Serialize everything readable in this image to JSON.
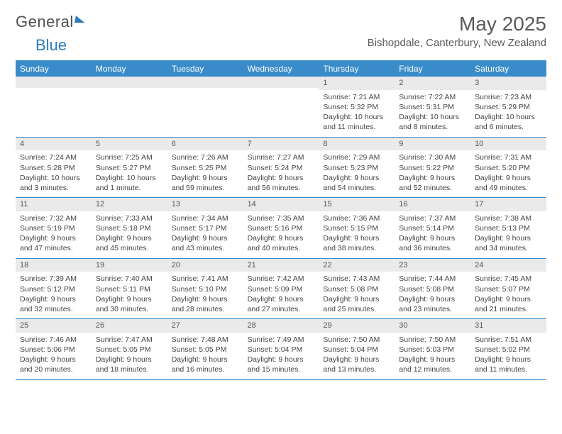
{
  "logo": {
    "part1": "General",
    "part2": "Blue"
  },
  "title": "May 2025",
  "location": "Bishopdale, Canterbury, New Zealand",
  "colors": {
    "header_bg": "#3a8bc9",
    "header_text": "#ffffff",
    "daynum_bg": "#eaeaea",
    "text": "#444444",
    "border": "#3a8bc9"
  },
  "dayNames": [
    "Sunday",
    "Monday",
    "Tuesday",
    "Wednesday",
    "Thursday",
    "Friday",
    "Saturday"
  ],
  "weeks": [
    [
      null,
      null,
      null,
      null,
      {
        "n": "1",
        "sr": "7:21 AM",
        "ss": "5:32 PM",
        "dl": "10 hours and 11 minutes."
      },
      {
        "n": "2",
        "sr": "7:22 AM",
        "ss": "5:31 PM",
        "dl": "10 hours and 8 minutes."
      },
      {
        "n": "3",
        "sr": "7:23 AM",
        "ss": "5:29 PM",
        "dl": "10 hours and 6 minutes."
      }
    ],
    [
      {
        "n": "4",
        "sr": "7:24 AM",
        "ss": "5:28 PM",
        "dl": "10 hours and 3 minutes."
      },
      {
        "n": "5",
        "sr": "7:25 AM",
        "ss": "5:27 PM",
        "dl": "10 hours and 1 minute."
      },
      {
        "n": "6",
        "sr": "7:26 AM",
        "ss": "5:25 PM",
        "dl": "9 hours and 59 minutes."
      },
      {
        "n": "7",
        "sr": "7:27 AM",
        "ss": "5:24 PM",
        "dl": "9 hours and 56 minutes."
      },
      {
        "n": "8",
        "sr": "7:29 AM",
        "ss": "5:23 PM",
        "dl": "9 hours and 54 minutes."
      },
      {
        "n": "9",
        "sr": "7:30 AM",
        "ss": "5:22 PM",
        "dl": "9 hours and 52 minutes."
      },
      {
        "n": "10",
        "sr": "7:31 AM",
        "ss": "5:20 PM",
        "dl": "9 hours and 49 minutes."
      }
    ],
    [
      {
        "n": "11",
        "sr": "7:32 AM",
        "ss": "5:19 PM",
        "dl": "9 hours and 47 minutes."
      },
      {
        "n": "12",
        "sr": "7:33 AM",
        "ss": "5:18 PM",
        "dl": "9 hours and 45 minutes."
      },
      {
        "n": "13",
        "sr": "7:34 AM",
        "ss": "5:17 PM",
        "dl": "9 hours and 43 minutes."
      },
      {
        "n": "14",
        "sr": "7:35 AM",
        "ss": "5:16 PM",
        "dl": "9 hours and 40 minutes."
      },
      {
        "n": "15",
        "sr": "7:36 AM",
        "ss": "5:15 PM",
        "dl": "9 hours and 38 minutes."
      },
      {
        "n": "16",
        "sr": "7:37 AM",
        "ss": "5:14 PM",
        "dl": "9 hours and 36 minutes."
      },
      {
        "n": "17",
        "sr": "7:38 AM",
        "ss": "5:13 PM",
        "dl": "9 hours and 34 minutes."
      }
    ],
    [
      {
        "n": "18",
        "sr": "7:39 AM",
        "ss": "5:12 PM",
        "dl": "9 hours and 32 minutes."
      },
      {
        "n": "19",
        "sr": "7:40 AM",
        "ss": "5:11 PM",
        "dl": "9 hours and 30 minutes."
      },
      {
        "n": "20",
        "sr": "7:41 AM",
        "ss": "5:10 PM",
        "dl": "9 hours and 28 minutes."
      },
      {
        "n": "21",
        "sr": "7:42 AM",
        "ss": "5:09 PM",
        "dl": "9 hours and 27 minutes."
      },
      {
        "n": "22",
        "sr": "7:43 AM",
        "ss": "5:08 PM",
        "dl": "9 hours and 25 minutes."
      },
      {
        "n": "23",
        "sr": "7:44 AM",
        "ss": "5:08 PM",
        "dl": "9 hours and 23 minutes."
      },
      {
        "n": "24",
        "sr": "7:45 AM",
        "ss": "5:07 PM",
        "dl": "9 hours and 21 minutes."
      }
    ],
    [
      {
        "n": "25",
        "sr": "7:46 AM",
        "ss": "5:06 PM",
        "dl": "9 hours and 20 minutes."
      },
      {
        "n": "26",
        "sr": "7:47 AM",
        "ss": "5:05 PM",
        "dl": "9 hours and 18 minutes."
      },
      {
        "n": "27",
        "sr": "7:48 AM",
        "ss": "5:05 PM",
        "dl": "9 hours and 16 minutes."
      },
      {
        "n": "28",
        "sr": "7:49 AM",
        "ss": "5:04 PM",
        "dl": "9 hours and 15 minutes."
      },
      {
        "n": "29",
        "sr": "7:50 AM",
        "ss": "5:04 PM",
        "dl": "9 hours and 13 minutes."
      },
      {
        "n": "30",
        "sr": "7:50 AM",
        "ss": "5:03 PM",
        "dl": "9 hours and 12 minutes."
      },
      {
        "n": "31",
        "sr": "7:51 AM",
        "ss": "5:02 PM",
        "dl": "9 hours and 11 minutes."
      }
    ]
  ],
  "labels": {
    "sunrise": "Sunrise: ",
    "sunset": "Sunset: ",
    "daylight": "Daylight: "
  }
}
